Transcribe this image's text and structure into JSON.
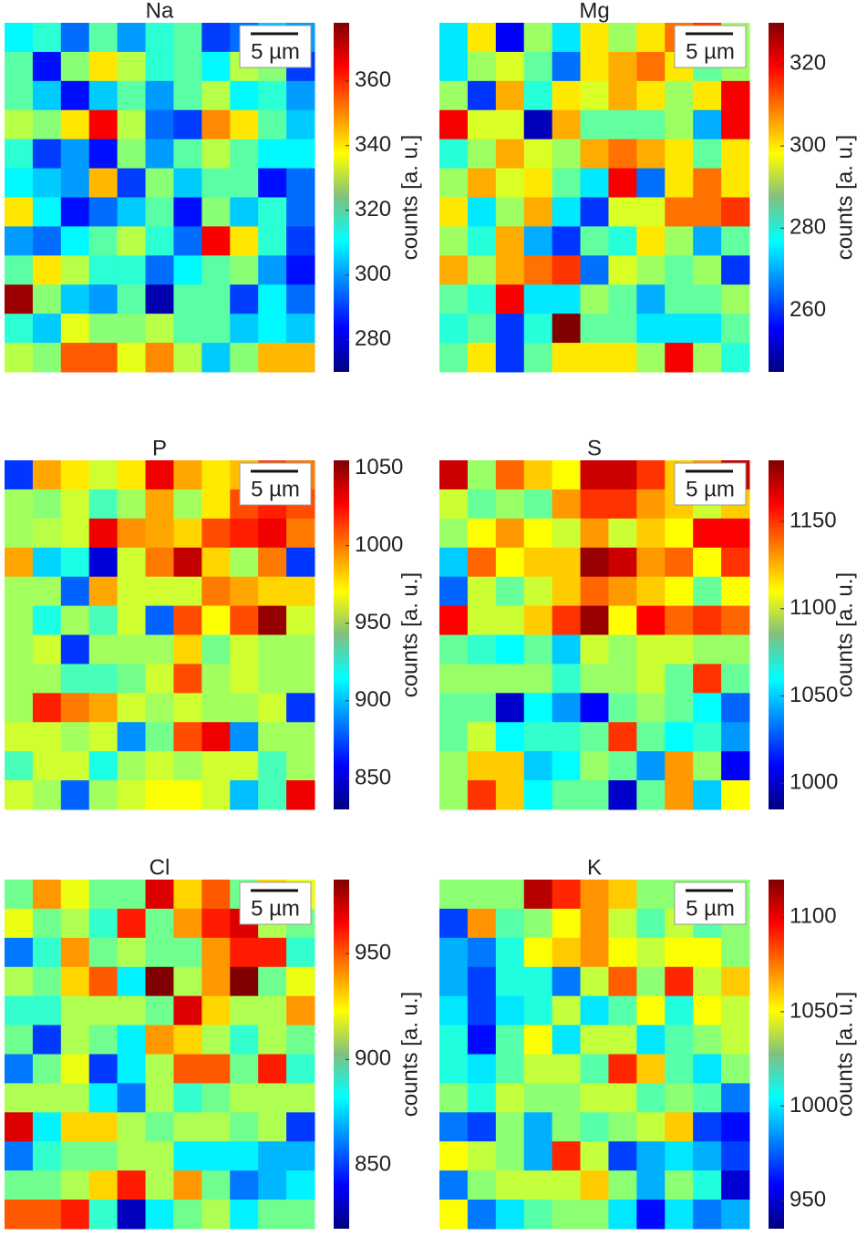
{
  "chart_data": [
    {
      "type": "heatmap",
      "title": "Na",
      "scalebar": "5 µm",
      "colorbar_label": "counts [a. u.]",
      "colormap": "jet",
      "zlim": [
        270,
        378
      ],
      "zticks": [
        280,
        300,
        320,
        340,
        360
      ],
      "z": [
        [
          310,
          315,
          295,
          320,
          300,
          315,
          320,
          290,
          295,
          305,
          300
        ],
        [
          320,
          285,
          325,
          340,
          330,
          315,
          320,
          310,
          330,
          325,
          290
        ],
        [
          320,
          305,
          285,
          305,
          320,
          300,
          320,
          330,
          310,
          315,
          300
        ],
        [
          330,
          325,
          340,
          365,
          330,
          295,
          290,
          350,
          340,
          320,
          305
        ],
        [
          315,
          290,
          300,
          285,
          325,
          300,
          320,
          330,
          320,
          310,
          310
        ],
        [
          310,
          305,
          300,
          345,
          290,
          325,
          305,
          320,
          320,
          285,
          295
        ],
        [
          340,
          310,
          285,
          295,
          305,
          320,
          285,
          325,
          305,
          315,
          295
        ],
        [
          300,
          295,
          310,
          320,
          330,
          315,
          295,
          365,
          340,
          315,
          290
        ],
        [
          320,
          340,
          330,
          315,
          315,
          295,
          310,
          320,
          325,
          300,
          285
        ],
        [
          375,
          325,
          305,
          300,
          320,
          275,
          320,
          320,
          290,
          310,
          295
        ],
        [
          315,
          305,
          335,
          325,
          325,
          330,
          320,
          320,
          305,
          310,
          305
        ],
        [
          330,
          325,
          355,
          355,
          335,
          350,
          330,
          305,
          325,
          345,
          345
        ]
      ]
    },
    {
      "type": "heatmap",
      "title": "Mg",
      "scalebar": "5 µm",
      "colorbar_label": "counts [a. u.]",
      "colormap": "jet",
      "zlim": [
        245,
        330
      ],
      "zticks": [
        260,
        280,
        300,
        320
      ],
      "z": [
        [
          275,
          300,
          255,
          290,
          275,
          300,
          290,
          300,
          310,
          315,
          290
        ],
        [
          275,
          290,
          295,
          285,
          265,
          300,
          305,
          310,
          300,
          285,
          290
        ],
        [
          290,
          260,
          305,
          280,
          300,
          295,
          305,
          300,
          290,
          300,
          320
        ],
        [
          320,
          295,
          295,
          250,
          305,
          285,
          285,
          285,
          290,
          270,
          320
        ],
        [
          280,
          290,
          305,
          295,
          290,
          305,
          310,
          305,
          300,
          285,
          300
        ],
        [
          290,
          305,
          295,
          300,
          285,
          275,
          320,
          265,
          300,
          310,
          300
        ],
        [
          300,
          275,
          290,
          305,
          275,
          260,
          295,
          295,
          310,
          310,
          315
        ],
        [
          290,
          280,
          305,
          270,
          260,
          285,
          280,
          300,
          290,
          270,
          285
        ],
        [
          305,
          290,
          305,
          310,
          315,
          265,
          295,
          290,
          285,
          290,
          260
        ],
        [
          285,
          280,
          320,
          275,
          275,
          290,
          285,
          270,
          285,
          285,
          290
        ],
        [
          280,
          285,
          260,
          280,
          330,
          285,
          285,
          275,
          275,
          275,
          285
        ],
        [
          285,
          300,
          260,
          285,
          300,
          300,
          300,
          290,
          320,
          290,
          280
        ]
      ]
    },
    {
      "type": "heatmap",
      "title": "P",
      "scalebar": "5 µm",
      "colorbar_label": "counts [a. u.]",
      "colormap": "jet",
      "zlim": [
        830,
        1055
      ],
      "zticks": [
        850,
        900,
        950,
        1000,
        1050
      ],
      "z": [
        [
          870,
          990,
          975,
          960,
          975,
          1030,
          990,
          975,
          985,
          1010,
          1000
        ],
        [
          950,
          945,
          960,
          930,
          950,
          990,
          950,
          975,
          1010,
          1020,
          1010
        ],
        [
          950,
          955,
          960,
          1030,
          995,
          990,
          980,
          1010,
          1020,
          1030,
          1000
        ],
        [
          990,
          905,
          920,
          850,
          960,
          1000,
          1040,
          980,
          950,
          1000,
          870
        ],
        [
          950,
          950,
          880,
          990,
          960,
          960,
          960,
          1000,
          990,
          980,
          980
        ],
        [
          950,
          920,
          950,
          930,
          960,
          880,
          1010,
          970,
          1010,
          1050,
          960
        ],
        [
          950,
          960,
          870,
          950,
          950,
          950,
          980,
          940,
          960,
          950,
          950
        ],
        [
          950,
          950,
          930,
          930,
          940,
          960,
          1010,
          950,
          960,
          950,
          950
        ],
        [
          950,
          1020,
          1000,
          990,
          960,
          950,
          960,
          950,
          950,
          960,
          870
        ],
        [
          960,
          960,
          950,
          960,
          890,
          940,
          1010,
          1030,
          890,
          950,
          950
        ],
        [
          930,
          960,
          960,
          920,
          950,
          960,
          950,
          960,
          960,
          930,
          950
        ],
        [
          960,
          950,
          880,
          950,
          960,
          970,
          970,
          960,
          900,
          930,
          1030
        ]
      ]
    },
    {
      "type": "heatmap",
      "title": "S",
      "scalebar": "5 µm",
      "colorbar_label": "counts [a. u.]",
      "colormap": "jet",
      "zlim": [
        985,
        1185
      ],
      "zticks": [
        1000,
        1050,
        1100,
        1150
      ],
      "z": [
        [
          1170,
          1090,
          1140,
          1120,
          1110,
          1170,
          1170,
          1150,
          1120,
          1130,
          1170
        ],
        [
          1100,
          1080,
          1090,
          1080,
          1130,
          1150,
          1150,
          1130,
          1120,
          1100,
          1120
        ],
        [
          1090,
          1110,
          1130,
          1110,
          1100,
          1130,
          1100,
          1120,
          1110,
          1160,
          1160
        ],
        [
          1050,
          1140,
          1110,
          1120,
          1120,
          1180,
          1170,
          1130,
          1140,
          1110,
          1150
        ],
        [
          1030,
          1100,
          1080,
          1100,
          1120,
          1140,
          1130,
          1120,
          1110,
          1080,
          1110
        ],
        [
          1160,
          1100,
          1100,
          1120,
          1150,
          1180,
          1110,
          1160,
          1140,
          1150,
          1140
        ],
        [
          1080,
          1070,
          1060,
          1080,
          1050,
          1100,
          1090,
          1100,
          1100,
          1090,
          1090
        ],
        [
          1090,
          1090,
          1090,
          1090,
          1070,
          1090,
          1090,
          1100,
          1080,
          1150,
          1080
        ],
        [
          1080,
          1080,
          1000,
          1060,
          1040,
          1010,
          1080,
          1090,
          1080,
          1060,
          1030
        ],
        [
          1080,
          1100,
          1060,
          1070,
          1070,
          1080,
          1150,
          1080,
          1060,
          1070,
          1040
        ],
        [
          1090,
          1120,
          1120,
          1050,
          1060,
          1090,
          1080,
          1040,
          1130,
          1090,
          1010
        ],
        [
          1090,
          1150,
          1120,
          1060,
          1080,
          1080,
          1000,
          1080,
          1130,
          1050,
          1110
        ]
      ]
    },
    {
      "type": "heatmap",
      "title": "Cl",
      "scalebar": "5 µm",
      "colorbar_label": "counts [a. u.]",
      "colormap": "jet",
      "zlim": [
        820,
        985
      ],
      "zticks": [
        850,
        900,
        950
      ],
      "z": [
        [
          900,
          940,
          920,
          900,
          900,
          970,
          930,
          950,
          900,
          930,
          920
        ],
        [
          920,
          900,
          910,
          890,
          960,
          900,
          940,
          960,
          970,
          910,
          900
        ],
        [
          860,
          890,
          940,
          900,
          910,
          900,
          900,
          940,
          960,
          960,
          890
        ],
        [
          910,
          900,
          930,
          950,
          880,
          985,
          910,
          940,
          985,
          900,
          920
        ],
        [
          890,
          890,
          910,
          910,
          910,
          900,
          970,
          930,
          910,
          910,
          940
        ],
        [
          900,
          850,
          910,
          900,
          880,
          940,
          930,
          910,
          890,
          910,
          900
        ],
        [
          860,
          900,
          920,
          850,
          880,
          910,
          950,
          950,
          900,
          960,
          890
        ],
        [
          910,
          910,
          910,
          880,
          860,
          910,
          890,
          900,
          910,
          910,
          910
        ],
        [
          970,
          880,
          930,
          930,
          910,
          900,
          910,
          910,
          900,
          910,
          850
        ],
        [
          860,
          890,
          900,
          900,
          910,
          910,
          880,
          880,
          880,
          870,
          870
        ],
        [
          900,
          900,
          910,
          930,
          960,
          910,
          940,
          900,
          860,
          870,
          880
        ],
        [
          950,
          950,
          960,
          890,
          830,
          880,
          900,
          910,
          880,
          900,
          900
        ]
      ]
    },
    {
      "type": "heatmap",
      "title": "K",
      "scalebar": "5 µm",
      "colorbar_label": "counts [a. u.]",
      "colormap": "jet",
      "zlim": [
        935,
        1120
      ],
      "zticks": [
        950,
        1000,
        1050,
        1100
      ],
      "z": [
        [
          1030,
          1030,
          1030,
          1110,
          1090,
          1070,
          1060,
          1030,
          1030,
          1030,
          1030
        ],
        [
          970,
          1070,
          1020,
          1030,
          1050,
          1070,
          1040,
          1020,
          1040,
          1020,
          1030
        ],
        [
          990,
          980,
          1010,
          1050,
          1060,
          1070,
          1050,
          1040,
          1050,
          1050,
          1030
        ],
        [
          990,
          970,
          1010,
          1010,
          980,
          1040,
          1080,
          1030,
          1090,
          1040,
          1060
        ],
        [
          1000,
          970,
          1000,
          1010,
          1040,
          1000,
          1020,
          1050,
          1010,
          1050,
          1040
        ],
        [
          1010,
          960,
          1020,
          1050,
          1000,
          1040,
          1040,
          1000,
          1020,
          1030,
          1040
        ],
        [
          1010,
          1000,
          1020,
          1040,
          1040,
          1020,
          1090,
          1060,
          1020,
          1000,
          1030
        ],
        [
          1030,
          1010,
          1040,
          1030,
          1030,
          1040,
          1040,
          1020,
          1030,
          1020,
          980
        ],
        [
          980,
          970,
          1030,
          990,
          1030,
          1020,
          1030,
          1040,
          1060,
          970,
          960
        ],
        [
          1050,
          1040,
          1030,
          990,
          1090,
          1040,
          970,
          990,
          1000,
          990,
          970
        ],
        [
          980,
          1030,
          1040,
          1040,
          1040,
          1060,
          1030,
          990,
          1030,
          1010,
          950
        ],
        [
          1050,
          980,
          1000,
          1020,
          1030,
          1030,
          1000,
          960,
          1000,
          980,
          990
        ]
      ]
    }
  ]
}
